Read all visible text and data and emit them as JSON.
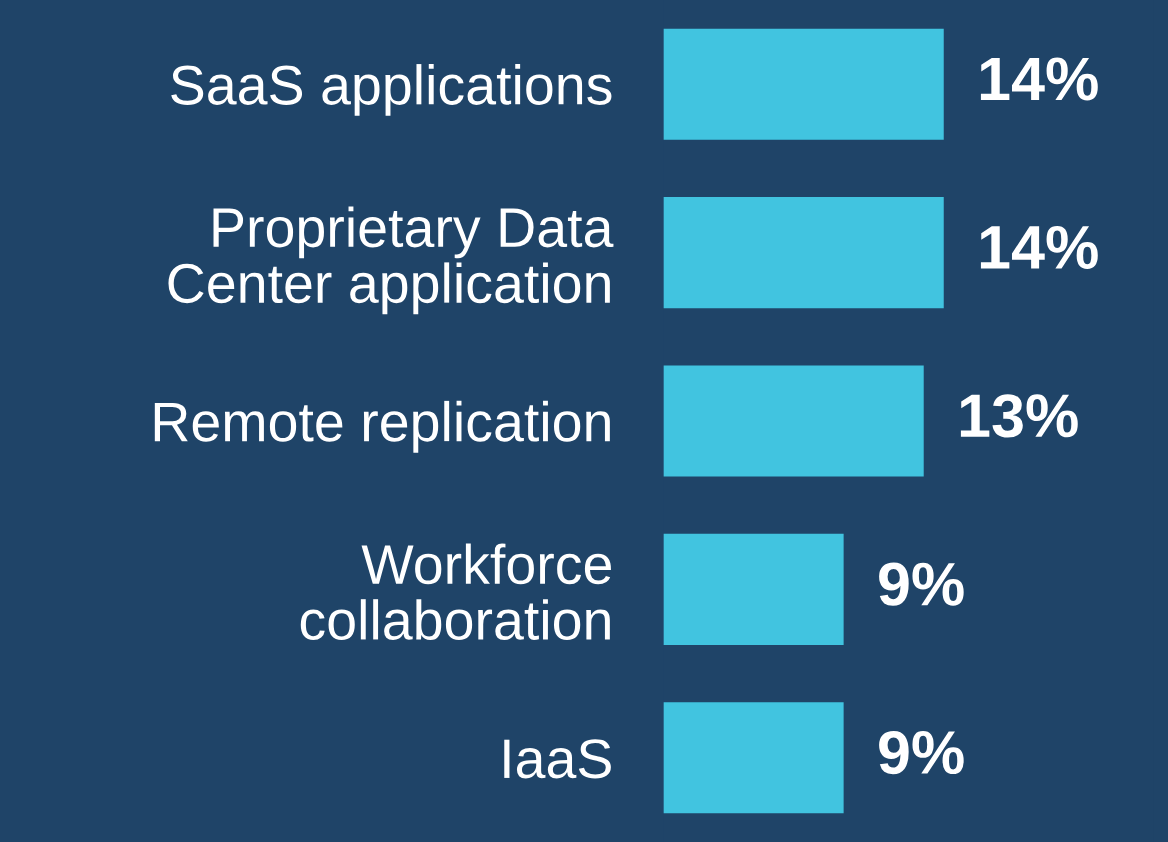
{
  "chart_data": {
    "type": "bar",
    "orientation": "horizontal",
    "categories": [
      "SaaS applications",
      "Proprietary Data\nCenter application",
      "Remote replication",
      "Workforce\ncollaboration",
      "IaaS"
    ],
    "values": [
      14,
      14,
      13,
      9,
      9
    ],
    "value_labels": [
      "14%",
      "14%",
      "13%",
      "9%",
      "9%"
    ],
    "color": "#41c4e0",
    "grid": false,
    "legend": false
  }
}
